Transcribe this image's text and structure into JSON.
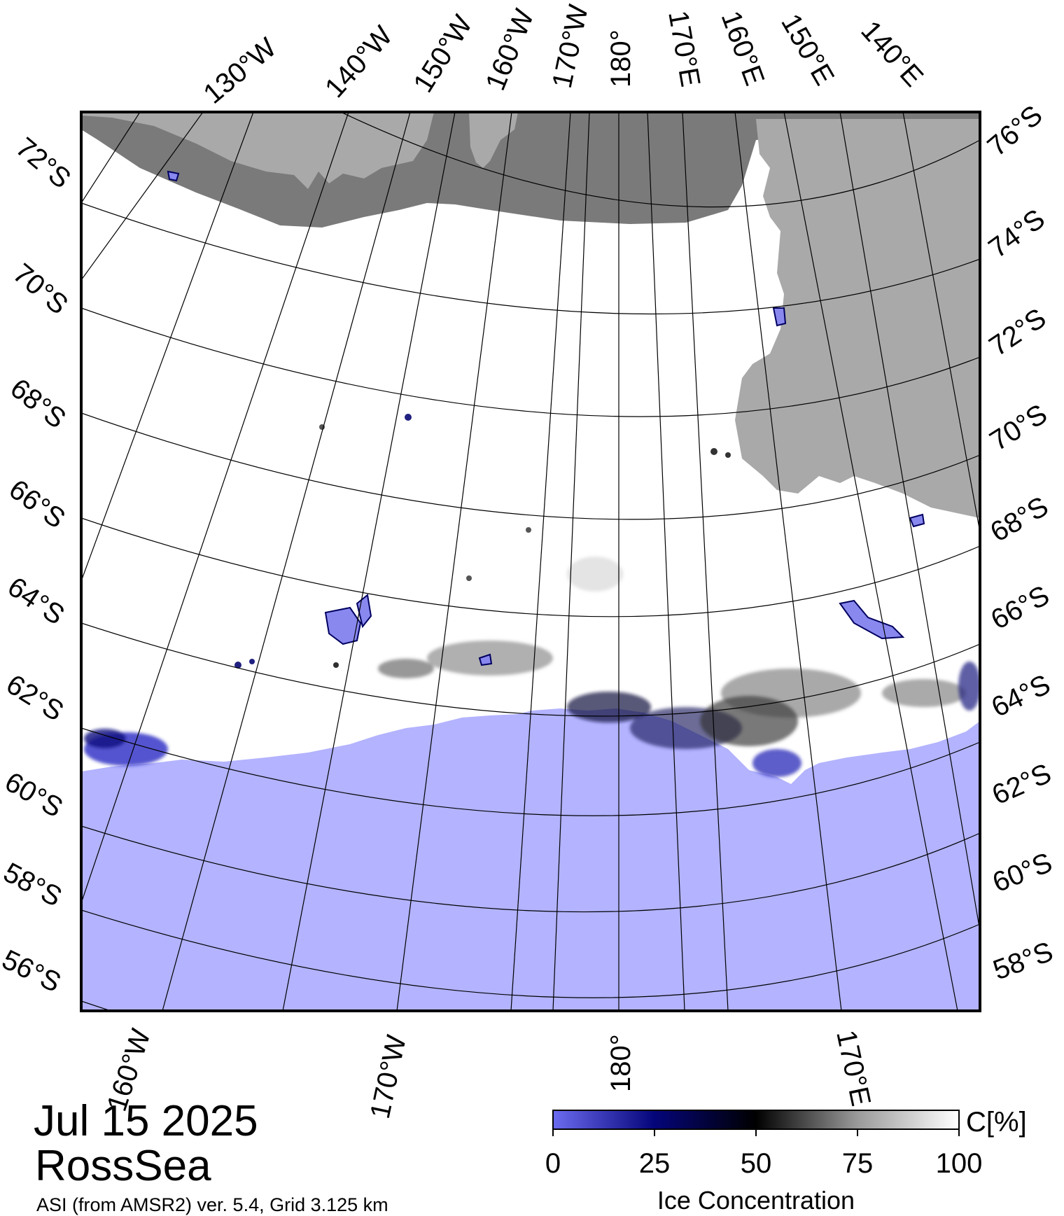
{
  "map": {
    "date": "Jul 15 2025",
    "region": "RossSea",
    "source": "ASI (from AMSR2) ver. 5.4,  Grid 3.125 km",
    "colors": {
      "ocean": "#b3b3ff",
      "ice_full": "#ffffff",
      "land": "#a9a9a9",
      "ice_shelf": "#7a7a7a",
      "frame": "#000000"
    },
    "top_lon_labels": [
      "130°W",
      "140°W",
      "150°W",
      "160°W",
      "170°W",
      "180°",
      "170°E",
      "160°E",
      "150°E",
      "140°E"
    ],
    "left_lat_labels": [
      "72°S",
      "70°S",
      "68°S",
      "66°S",
      "64°S",
      "62°S",
      "60°S",
      "58°S",
      "56°S"
    ],
    "right_lat_labels": [
      "76°S",
      "74°S",
      "72°S",
      "70°S",
      "68°S",
      "66°S",
      "64°S",
      "62°S",
      "60°S",
      "58°S"
    ],
    "bottom_lon_labels": [
      "160°W",
      "170°W",
      "180°",
      "170°E"
    ]
  },
  "colorbar": {
    "title": "Ice Concentration",
    "unit": "C[%]",
    "ticks": [
      "0",
      "25",
      "50",
      "75",
      "100"
    ],
    "stops": [
      {
        "value": 0,
        "color": "#6b6bf0"
      },
      {
        "value": 25,
        "color": "#05057a"
      },
      {
        "value": 50,
        "color": "#000000"
      },
      {
        "value": 75,
        "color": "#9a9a9a"
      },
      {
        "value": 100,
        "color": "#ffffff"
      }
    ]
  }
}
